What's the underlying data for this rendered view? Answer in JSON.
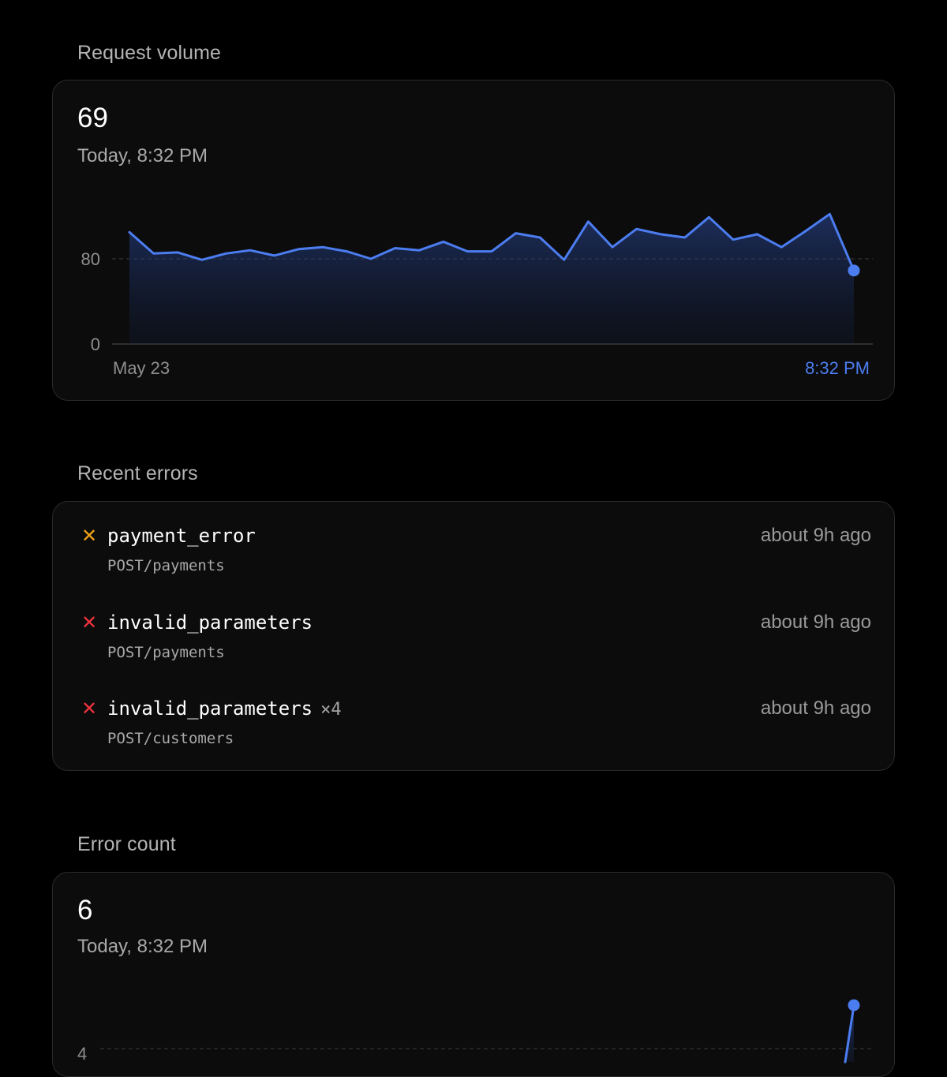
{
  "request_volume": {
    "title": "Request volume",
    "value": "69",
    "timestamp": "Today, 8:32 PM",
    "x_start_label": "May 23",
    "x_end_label": "8:32 PM",
    "accent_color": "#4c7df0"
  },
  "recent_errors": {
    "title": "Recent errors",
    "items": [
      {
        "icon": "warning-x-icon",
        "icon_color": "#f2a316",
        "icon_glyph": "✕",
        "name": "payment_error",
        "count": "",
        "path": "POST/payments",
        "time": "about 9h ago"
      },
      {
        "icon": "error-x-icon",
        "icon_color": "#f0333d",
        "icon_glyph": "✕",
        "name": "invalid_parameters",
        "count": "",
        "path": "POST/payments",
        "time": "about 9h ago"
      },
      {
        "icon": "error-x-icon",
        "icon_color": "#f0333d",
        "icon_glyph": "✕",
        "name": "invalid_parameters",
        "count": "×4",
        "path": "POST/customers",
        "time": "about 9h ago"
      }
    ]
  },
  "error_count": {
    "title": "Error count",
    "value": "6",
    "timestamp": "Today, 8:32 PM"
  },
  "chart_data": [
    {
      "type": "area",
      "y_ticks": [
        "0",
        "80"
      ],
      "reference_line_value": 80,
      "ylim": [
        0,
        160
      ],
      "x_labels": [
        "May 23",
        "8:32 PM"
      ],
      "grid": false,
      "series": [
        {
          "values": [
            105,
            85,
            86,
            79,
            85,
            88,
            83,
            89,
            91,
            87,
            80,
            90,
            88,
            96,
            87,
            87,
            104,
            100,
            79,
            115,
            91,
            108,
            103,
            100,
            119,
            98,
            103,
            91,
            106,
            122,
            69
          ]
        }
      ],
      "last_point_marker": true,
      "color": "#4c7df0"
    },
    {
      "type": "area",
      "y_ticks": [
        "4"
      ],
      "reference_line_value": 4,
      "series": [
        {
          "values": [
            6
          ]
        }
      ],
      "last_point_marker": true,
      "color": "#4c7df0"
    }
  ]
}
